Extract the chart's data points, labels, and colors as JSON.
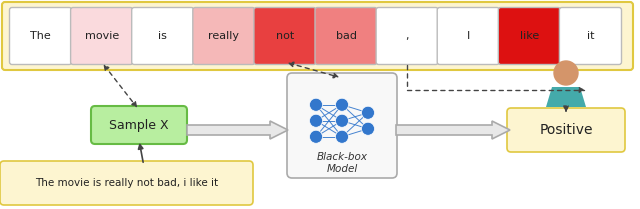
{
  "words": [
    "The",
    "movie",
    "is",
    "really",
    "not",
    "bad",
    ",",
    "I",
    "like",
    "it"
  ],
  "word_colors": [
    "#ffffff",
    "#fadadd",
    "#ffffff",
    "#f5b8b8",
    "#e84040",
    "#f08080",
    "#ffffff",
    "#ffffff",
    "#dd1111",
    "#ffffff"
  ],
  "sentence_box_color": "#fdf5d0",
  "sentence_box_border": "#e0c840",
  "sentence_text": "The movie is really not bad, i like it",
  "sample_x_color": "#b8eea0",
  "sample_x_border": "#66bb44",
  "sample_x_text": "Sample X",
  "positive_color": "#fdf5d0",
  "positive_border": "#e0c840",
  "positive_text": "Positive",
  "blackbox_text": "Black-box\nModel",
  "nn_color": "#3377cc",
  "background_color": "#ffffff",
  "figsize": [
    6.4,
    2.09
  ],
  "dpi": 100,
  "person_head_color": "#d4956a",
  "person_body_color": "#44aaaa"
}
